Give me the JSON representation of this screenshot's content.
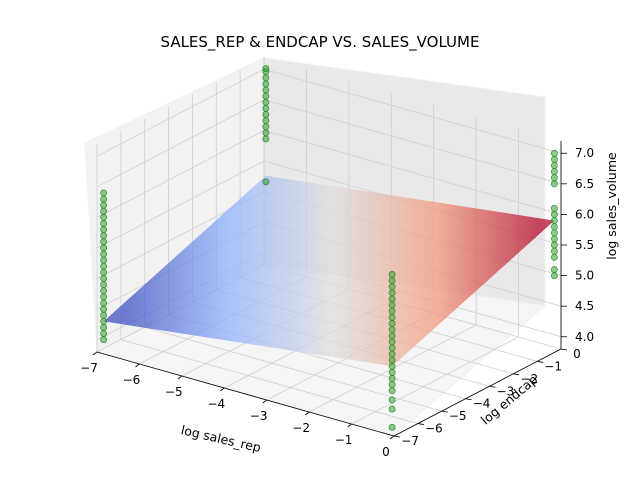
{
  "chart_data": {
    "type": "scatter",
    "title": "SALES_REP & ENDCAP VS. SALES_VOLUME",
    "xlabel": "log sales_rep",
    "ylabel": "log endcap",
    "zlabel": "log sales_volume",
    "xlim": [
      -7,
      0
    ],
    "ylim": [
      -7,
      0
    ],
    "zlim": [
      3.8,
      7.2
    ],
    "x_ticks": [
      "−7",
      "−6",
      "−5",
      "−4",
      "−3",
      "−2",
      "−1",
      "0"
    ],
    "y_ticks": [
      "−7",
      "−6",
      "−5",
      "−4",
      "−3",
      "−2",
      "−1",
      "0"
    ],
    "z_ticks": [
      "4.0",
      "4.5",
      "5.0",
      "5.5",
      "6.0",
      "6.5",
      "7.0"
    ],
    "grid": true,
    "surface": {
      "type": "plane",
      "colormap": "coolwarm",
      "corners": [
        {
          "x": -6.9,
          "y": -6.9,
          "z": 4.3
        },
        {
          "x": -0.1,
          "y": -6.9,
          "z": 4.9
        },
        {
          "x": -0.1,
          "y": -0.1,
          "z": 5.9
        },
        {
          "x": -6.9,
          "y": -0.1,
          "z": 5.3
        }
      ]
    },
    "series": [
      {
        "color": "#2ca02c",
        "points": [
          {
            "x": -6.9,
            "y": -6.9,
            "z": 4.0
          },
          {
            "x": -6.9,
            "y": -6.9,
            "z": 4.1
          },
          {
            "x": -6.9,
            "y": -6.9,
            "z": 4.2
          },
          {
            "x": -6.9,
            "y": -6.9,
            "z": 4.3
          },
          {
            "x": -6.9,
            "y": -6.9,
            "z": 4.4
          },
          {
            "x": -6.9,
            "y": -6.9,
            "z": 4.5
          },
          {
            "x": -6.9,
            "y": -6.9,
            "z": 4.6
          },
          {
            "x": -6.9,
            "y": -6.9,
            "z": 4.7
          },
          {
            "x": -6.9,
            "y": -6.9,
            "z": 4.8
          },
          {
            "x": -6.9,
            "y": -6.9,
            "z": 4.9
          },
          {
            "x": -6.9,
            "y": -6.9,
            "z": 5.0
          },
          {
            "x": -6.9,
            "y": -6.9,
            "z": 5.1
          },
          {
            "x": -6.9,
            "y": -6.9,
            "z": 5.2
          },
          {
            "x": -6.9,
            "y": -6.9,
            "z": 5.3
          },
          {
            "x": -6.9,
            "y": -6.9,
            "z": 5.4
          },
          {
            "x": -6.9,
            "y": -6.9,
            "z": 5.5
          },
          {
            "x": -6.9,
            "y": -6.9,
            "z": 5.6
          },
          {
            "x": -6.9,
            "y": -6.9,
            "z": 5.7
          },
          {
            "x": -6.9,
            "y": -6.9,
            "z": 5.8
          },
          {
            "x": -6.9,
            "y": -6.9,
            "z": 5.9
          },
          {
            "x": -6.9,
            "y": -6.9,
            "z": 6.0
          },
          {
            "x": -6.9,
            "y": -6.9,
            "z": 6.1
          },
          {
            "x": -6.9,
            "y": -6.9,
            "z": 6.2
          },
          {
            "x": -6.9,
            "y": -6.9,
            "z": 6.3
          },
          {
            "x": -6.9,
            "y": -6.9,
            "z": 6.4
          },
          {
            "x": -0.1,
            "y": -6.9,
            "z": 3.9
          },
          {
            "x": -0.1,
            "y": -6.9,
            "z": 4.2
          },
          {
            "x": -0.1,
            "y": -6.9,
            "z": 4.35
          },
          {
            "x": -0.1,
            "y": -6.9,
            "z": 4.5
          },
          {
            "x": -0.1,
            "y": -6.9,
            "z": 4.6
          },
          {
            "x": -0.1,
            "y": -6.9,
            "z": 4.7
          },
          {
            "x": -0.1,
            "y": -6.9,
            "z": 4.8
          },
          {
            "x": -0.1,
            "y": -6.9,
            "z": 4.9
          },
          {
            "x": -0.1,
            "y": -6.9,
            "z": 5.0
          },
          {
            "x": -0.1,
            "y": -6.9,
            "z": 5.1
          },
          {
            "x": -0.1,
            "y": -6.9,
            "z": 5.2
          },
          {
            "x": -0.1,
            "y": -6.9,
            "z": 5.3
          },
          {
            "x": -0.1,
            "y": -6.9,
            "z": 5.4
          },
          {
            "x": -0.1,
            "y": -6.9,
            "z": 5.5
          },
          {
            "x": -0.1,
            "y": -6.9,
            "z": 5.6
          },
          {
            "x": -0.1,
            "y": -6.9,
            "z": 5.7
          },
          {
            "x": -0.1,
            "y": -6.9,
            "z": 5.8
          },
          {
            "x": -0.1,
            "y": -6.9,
            "z": 5.9
          },
          {
            "x": -0.1,
            "y": -6.9,
            "z": 6.0
          },
          {
            "x": -0.1,
            "y": -6.9,
            "z": 6.1
          },
          {
            "x": -0.1,
            "y": -6.9,
            "z": 6.2
          },
          {
            "x": -0.1,
            "y": -6.9,
            "z": 6.3
          },
          {
            "x": -0.1,
            "y": -6.9,
            "z": 6.4
          },
          {
            "x": -6.9,
            "y": -0.1,
            "z": 5.2
          },
          {
            "x": -6.9,
            "y": -0.1,
            "z": 5.9
          },
          {
            "x": -6.9,
            "y": -0.1,
            "z": 6.0
          },
          {
            "x": -6.9,
            "y": -0.1,
            "z": 6.1
          },
          {
            "x": -6.9,
            "y": -0.1,
            "z": 6.2
          },
          {
            "x": -6.9,
            "y": -0.1,
            "z": 6.3
          },
          {
            "x": -6.9,
            "y": -0.1,
            "z": 6.4
          },
          {
            "x": -6.9,
            "y": -0.1,
            "z": 6.5
          },
          {
            "x": -6.9,
            "y": -0.1,
            "z": 6.6
          },
          {
            "x": -6.9,
            "y": -0.1,
            "z": 6.7
          },
          {
            "x": -6.9,
            "y": -0.1,
            "z": 6.8
          },
          {
            "x": -6.9,
            "y": -0.1,
            "z": 6.9
          },
          {
            "x": -6.9,
            "y": -0.1,
            "z": 7.0
          },
          {
            "x": -6.9,
            "y": -0.1,
            "z": 7.05
          },
          {
            "x": -0.1,
            "y": -0.1,
            "z": 5.0
          },
          {
            "x": -0.1,
            "y": -0.1,
            "z": 5.1
          },
          {
            "x": -0.1,
            "y": -0.1,
            "z": 5.3
          },
          {
            "x": -0.1,
            "y": -0.1,
            "z": 5.4
          },
          {
            "x": -0.1,
            "y": -0.1,
            "z": 5.5
          },
          {
            "x": -0.1,
            "y": -0.1,
            "z": 5.6
          },
          {
            "x": -0.1,
            "y": -0.1,
            "z": 5.7
          },
          {
            "x": -0.1,
            "y": -0.1,
            "z": 5.8
          },
          {
            "x": -0.1,
            "y": -0.1,
            "z": 5.9
          },
          {
            "x": -0.1,
            "y": -0.1,
            "z": 6.0
          },
          {
            "x": -0.1,
            "y": -0.1,
            "z": 6.1
          },
          {
            "x": -0.1,
            "y": -0.1,
            "z": 6.5
          },
          {
            "x": -0.1,
            "y": -0.1,
            "z": 6.6
          },
          {
            "x": -0.1,
            "y": -0.1,
            "z": 6.7
          },
          {
            "x": -0.1,
            "y": -0.1,
            "z": 6.8
          },
          {
            "x": -0.1,
            "y": -0.1,
            "z": 6.9
          },
          {
            "x": -0.1,
            "y": -0.1,
            "z": 7.0
          }
        ]
      }
    ]
  }
}
